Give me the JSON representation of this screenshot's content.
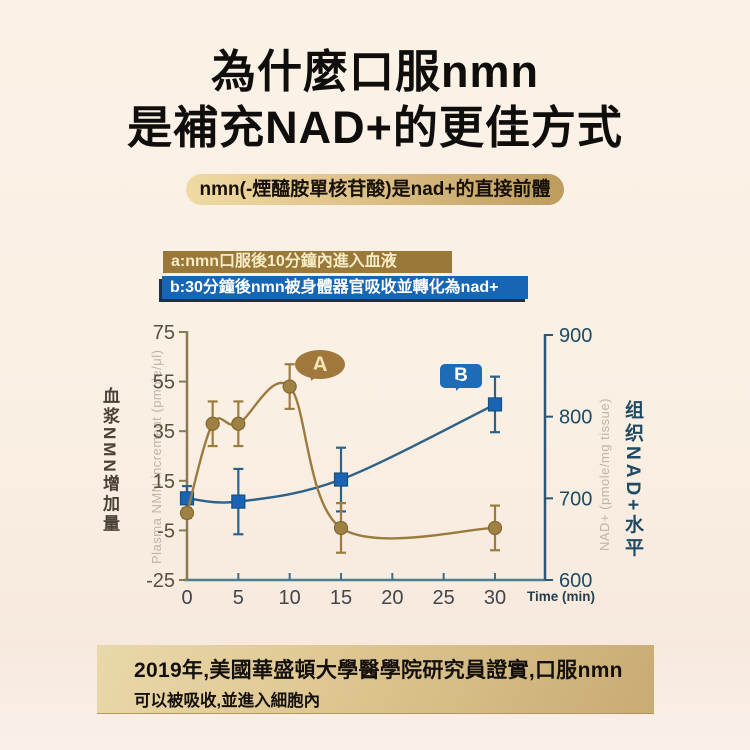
{
  "colors": {
    "background": "#FAEFE3",
    "gold_accent": "#9A7839",
    "blue_accent": "#1766B4",
    "badge_gold": "#DFC288",
    "footer_gold": "#D5BC88"
  },
  "header": {
    "title_line1": "為什麼口服nmn",
    "title_line2": "是補充NAD+的更佳方式",
    "badge": "nmn(-煙醯胺單核苷酸)是nad+的直接前體"
  },
  "callouts": {
    "a": "a:nmn口服後10分鐘內進入血液",
    "b": "b:30分鐘後nmn被身體器官吸收並轉化為nad+"
  },
  "chart_data": {
    "type": "line",
    "xlabel": "Time (min)",
    "x_ticks": [
      0,
      5,
      10,
      15,
      20,
      25,
      30
    ],
    "x_range": [
      0,
      32
    ],
    "grid": false,
    "left_axis": {
      "label_en": "Plasma NMN increment (pmole/μl)",
      "label_zh": "血浆NMN增加量",
      "ticks": [
        75,
        55,
        35,
        15,
        -5,
        -25
      ],
      "range": [
        -25,
        75
      ]
    },
    "right_axis": {
      "label_en": "NAD+ (pmole/mg tissue)",
      "label_zh": "组织NAD+水平",
      "ticks": [
        900,
        800,
        700,
        600
      ],
      "range": [
        600,
        900
      ]
    },
    "series": [
      {
        "name": "B",
        "axis": "right",
        "marker": "square",
        "color": "#1B63B4",
        "line_color": "#2D6187",
        "marker_stroke": "#14507E",
        "x": [
          0,
          5,
          15,
          30
        ],
        "y": [
          700,
          696,
          723,
          815
        ],
        "err": [
          15,
          40,
          39,
          34
        ]
      },
      {
        "name": "A",
        "axis": "left",
        "marker": "circle",
        "color": "#A08145",
        "line_color": "#9C7B3F",
        "marker_stroke": "#82672F",
        "x": [
          0,
          2.5,
          5,
          10,
          15,
          30
        ],
        "y": [
          2,
          38,
          38,
          53,
          -4,
          -4
        ],
        "err": [
          2,
          9,
          9,
          9,
          10,
          9
        ]
      }
    ],
    "annotations": [
      {
        "label": "A"
      },
      {
        "label": "B"
      }
    ]
  },
  "footer": {
    "line1": "2019年,美國華盛頓大學醫學院研究員證實,口服nmn",
    "line2": "可以被吸收,並進入細胞內"
  }
}
